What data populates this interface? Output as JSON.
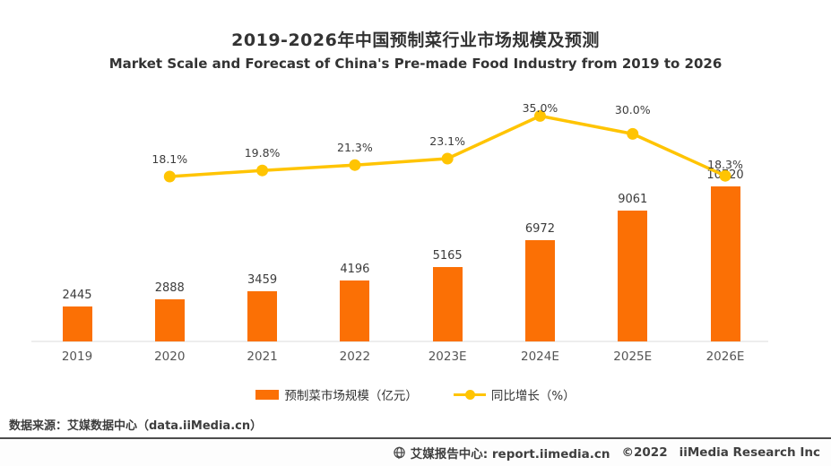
{
  "header": {
    "title_zh": "2019-2026年中国预制菜行业市场规模及预测",
    "title_en": "Market Scale and Forecast of China's Pre-made Food Industry from 2019 to 2026"
  },
  "chart_data": {
    "type": "bar",
    "categories": [
      "2019",
      "2020",
      "2021",
      "2022",
      "2023E",
      "2024E",
      "2025E",
      "2026E"
    ],
    "series": [
      {
        "name": "预制菜市场规模（亿元）",
        "type": "bar",
        "values": [
          2445,
          2888,
          3459,
          4196,
          5165,
          6972,
          9061,
          10720
        ],
        "labels": [
          "2445",
          "2888",
          "3459",
          "4196",
          "5165",
          "6972",
          "9061",
          "10720"
        ]
      },
      {
        "name": "同比增长（%）",
        "type": "line",
        "values": [
          null,
          18.1,
          19.8,
          21.3,
          23.1,
          35.0,
          30.0,
          18.3
        ],
        "labels": [
          null,
          "18.1%",
          "19.8%",
          "21.3%",
          "23.1%",
          "35.0%",
          "30.0%",
          "18.3%"
        ]
      }
    ],
    "title": "2019-2026年中国预制菜行业市场规模及预测",
    "subtitle": "Market Scale and Forecast of China's Pre-made Food Industry from 2019 to 2026",
    "xlabel": "",
    "ylabel": "",
    "grid": false,
    "axes_visible": false,
    "legend_position": "bottom",
    "bar_axis_implied_range": [
      0,
      11000
    ],
    "line_axis_implied_range": [
      0,
      40
    ]
  },
  "legend": {
    "bar_label": "预制菜市场规模（亿元）",
    "line_label": "同比增长（%）"
  },
  "footer": {
    "source": "数据来源：艾媒数据中心（data.iiMedia.cn）"
  },
  "bottombar": {
    "site": "艾媒报告中心: report.iimedia.cn",
    "copyright": "©2022",
    "company": "iiMedia Research Inc"
  },
  "colors": {
    "bar": "#FB7005",
    "line": "#FFC402",
    "title": "#333333"
  }
}
